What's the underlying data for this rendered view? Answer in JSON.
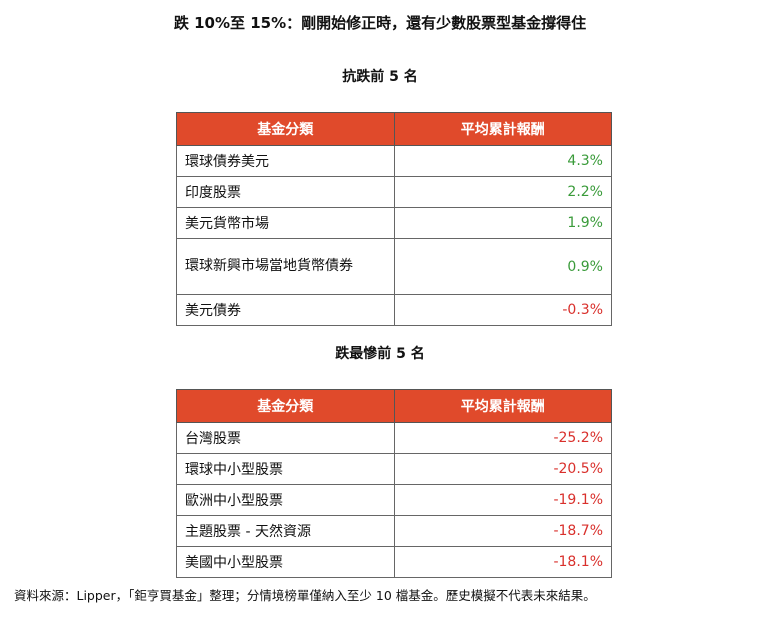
{
  "title": "跌 10%至 15%：剛開始修正時，還有少數股票型基金撐得住",
  "top5": {
    "subtitle": "抗跌前 5 名",
    "headers": [
      "基金分類",
      "平均累計報酬"
    ],
    "rows": [
      {
        "name": "環球債券美元",
        "value": "4.3%",
        "sign": "pos"
      },
      {
        "name": "印度股票",
        "value": "2.2%",
        "sign": "pos"
      },
      {
        "name": "美元貨幣市場",
        "value": "1.9%",
        "sign": "pos"
      },
      {
        "name": "環球新興市場當地貨幣債券",
        "value": "0.9%",
        "sign": "pos"
      },
      {
        "name": "美元債券",
        "value": "-0.3%",
        "sign": "neg"
      }
    ]
  },
  "bottom5": {
    "subtitle": "跌最慘前 5 名",
    "headers": [
      "基金分類",
      "平均累計報酬"
    ],
    "rows": [
      {
        "name": "台灣股票",
        "value": "-25.2%",
        "sign": "neg"
      },
      {
        "name": "環球中小型股票",
        "value": "-20.5%",
        "sign": "neg"
      },
      {
        "name": "歐洲中小型股票",
        "value": "-19.1%",
        "sign": "neg"
      },
      {
        "name": "主題股票 - 天然資源",
        "value": "-18.7%",
        "sign": "neg"
      },
      {
        "name": "美國中小型股票",
        "value": "-18.1%",
        "sign": "neg"
      }
    ]
  },
  "footer": "資料來源：Lipper，「鉅亨買基金」整理；分情境榜單僅納入至少 10 檔基金。歷史模擬不代表未來結果。",
  "colors": {
    "header_bg": "#e04a2b",
    "positive": "#3a9b3a",
    "negative": "#d9302c"
  }
}
